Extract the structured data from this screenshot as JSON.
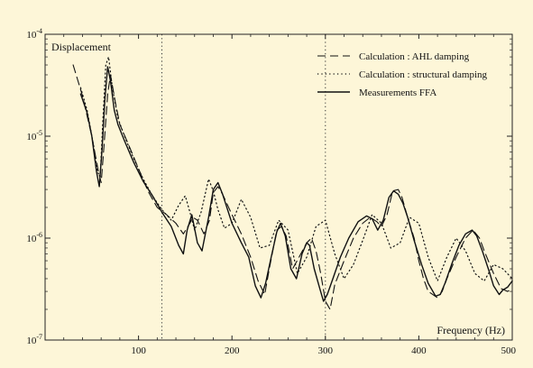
{
  "chart_data": {
    "type": "line",
    "title": "",
    "ylabel": "Displacement",
    "xlabel": "Frequency (Hz)",
    "xlim": [
      0,
      500
    ],
    "ylim": [
      1e-07,
      0.0001
    ],
    "yscale": "log",
    "grid": false,
    "legend_placement": "top-right",
    "x_ticks": [
      {
        "value": 100,
        "label": "100"
      },
      {
        "value": 200,
        "label": "200"
      },
      {
        "value": 300,
        "label": "300"
      },
      {
        "value": 400,
        "label": "400"
      },
      {
        "value": 500,
        "label": "500"
      }
    ],
    "y_ticks": [
      {
        "value": 1e-07,
        "base": "10",
        "exp": "-7"
      },
      {
        "value": 1e-06,
        "base": "10",
        "exp": "-6"
      },
      {
        "value": 1e-05,
        "base": "10",
        "exp": "-5"
      },
      {
        "value": 0.0001,
        "base": "10",
        "exp": "-4"
      }
    ],
    "reference_lines_x": [
      125,
      300
    ],
    "series": [
      {
        "name": "Calculation : AHL damping",
        "style": "dashed",
        "x": [
          30,
          40,
          50,
          57,
          60,
          63,
          67,
          70,
          75,
          80,
          90,
          100,
          110,
          120,
          130,
          140,
          148,
          155,
          158,
          163,
          170,
          176,
          180,
          185,
          190,
          200,
          210,
          220,
          228,
          235,
          240,
          248,
          253,
          258,
          265,
          273,
          280,
          285,
          290,
          295,
          300,
          305,
          310,
          320,
          330,
          340,
          348,
          355,
          360,
          366,
          372,
          378,
          382,
          388,
          395,
          400,
          405,
          410,
          420,
          425,
          430,
          440,
          450,
          458,
          465,
          470,
          480,
          488,
          495,
          500
        ],
        "y": [
          5e-05,
          2.5e-05,
          1e-05,
          4.5e-06,
          3.5e-06,
          8e-06,
          2.6e-05,
          4e-05,
          2.2e-05,
          1.3e-05,
          8e-06,
          4.8e-06,
          2.9e-06,
          2e-06,
          1.7e-06,
          1.4e-06,
          1.1e-06,
          1.4e-06,
          1.6e-06,
          1.5e-06,
          1.1e-06,
          1.5e-06,
          2.8e-06,
          3.2e-06,
          2.7e-06,
          1.7e-06,
          1.1e-06,
          6.5e-07,
          3.8e-07,
          2.8e-07,
          5e-07,
          1.2e-06,
          1.3e-06,
          1.05e-06,
          5e-07,
          6.8e-07,
          9e-07,
          1e-06,
          7.5e-07,
          4.5e-07,
          2.4e-07,
          2e-07,
          3.5e-07,
          6e-07,
          1e-06,
          1.4e-06,
          1.6e-06,
          1.45e-06,
          1.3e-06,
          1.7e-06,
          2.9e-06,
          3e-06,
          2.5e-06,
          1.6e-06,
          1e-06,
          6e-07,
          4e-07,
          3e-07,
          2.6e-07,
          3e-07,
          4e-07,
          6.5e-07,
          1e-06,
          1.2e-06,
          1e-06,
          7.5e-07,
          4.5e-07,
          3.2e-07,
          3e-07,
          3.2e-07
        ]
      },
      {
        "name": "Calculation : structural damping",
        "style": "dotted",
        "x": [
          38,
          45,
          52,
          56,
          59,
          62,
          65,
          68,
          72,
          78,
          85,
          95,
          105,
          115,
          125,
          135,
          143,
          150,
          155,
          160,
          167,
          175,
          180,
          185,
          192,
          200,
          210,
          220,
          230,
          240,
          250,
          260,
          270,
          280,
          290,
          300,
          310,
          320,
          330,
          340,
          350,
          360,
          370,
          380,
          390,
          400,
          410,
          420,
          430,
          440,
          450,
          460,
          470,
          480,
          490,
          500
        ],
        "y": [
          3e-05,
          1.8e-05,
          8e-06,
          4.5e-06,
          4e-06,
          1.5e-05,
          5e-05,
          6e-05,
          3e-05,
          1.5e-05,
          1e-05,
          6e-06,
          3.8e-06,
          2.6e-06,
          1.9e-06,
          1.5e-06,
          2.1e-06,
          2.6e-06,
          1.8e-06,
          1.2e-06,
          1.8e-06,
          3.8e-06,
          2.9e-06,
          1.9e-06,
          1.25e-06,
          1.4e-06,
          2.4e-06,
          1.6e-06,
          8e-07,
          8.5e-07,
          1.5e-06,
          1.2e-06,
          4.5e-07,
          6.5e-07,
          1.3e-06,
          1.5e-06,
          7e-07,
          4e-07,
          5.5e-07,
          9.5e-07,
          1.7e-06,
          1.4e-06,
          8e-07,
          9e-07,
          1.6e-06,
          1.4e-06,
          6.5e-07,
          3.8e-07,
          6.5e-07,
          1e-06,
          7.5e-07,
          4.5e-07,
          3.8e-07,
          5.5e-07,
          5e-07,
          4e-07
        ]
      },
      {
        "name": "Measurements FFA",
        "style": "solid",
        "x": [
          38,
          45,
          50,
          55,
          58,
          61,
          64,
          67,
          70,
          74,
          78,
          85,
          95,
          105,
          115,
          125,
          135,
          143,
          148,
          152,
          157,
          163,
          168,
          175,
          180,
          185,
          190,
          200,
          210,
          218,
          225,
          231,
          236,
          242,
          248,
          252,
          257,
          263,
          269,
          275,
          280,
          283,
          288,
          294,
          298,
          302,
          308,
          316,
          325,
          335,
          344,
          350,
          356,
          362,
          368,
          373,
          378,
          383,
          388,
          395,
          403,
          410,
          418,
          423,
          428,
          435,
          443,
          450,
          457,
          462,
          468,
          475,
          480,
          486,
          490,
          495,
          500
        ],
        "y": [
          2.6e-05,
          1.7e-05,
          1e-05,
          4.5e-06,
          3.2e-06,
          7.5e-06,
          2.3e-05,
          4.8e-05,
          3.5e-05,
          1.8e-05,
          1.3e-05,
          9e-06,
          5.5e-06,
          3.6e-06,
          2.6e-06,
          1.8e-06,
          1.3e-06,
          8.5e-07,
          7e-07,
          1.2e-06,
          1.7e-06,
          9e-07,
          7.5e-07,
          1.6e-06,
          3e-06,
          3.5e-06,
          2.7e-06,
          1.4e-06,
          9e-07,
          6.5e-07,
          3.4e-07,
          2.6e-07,
          3.6e-07,
          6.5e-07,
          1.15e-06,
          1.4e-06,
          1.05e-06,
          5e-07,
          4e-07,
          7e-07,
          9e-07,
          8.5e-07,
          5e-07,
          3.2e-07,
          2.4e-07,
          2.8e-07,
          4e-07,
          6.5e-07,
          1e-06,
          1.45e-06,
          1.65e-06,
          1.55e-06,
          1.2e-06,
          1.5e-06,
          2.5e-06,
          2.9e-06,
          2.7e-06,
          2.2e-06,
          1.6e-06,
          9.5e-07,
          5.5e-07,
          3.6e-07,
          2.7e-07,
          2.8e-07,
          3.6e-07,
          5.5e-07,
          8.5e-07,
          1.1e-06,
          1.2e-06,
          1.05e-06,
          7.5e-07,
          4.8e-07,
          3.4e-07,
          2.8e-07,
          3.1e-07,
          3.3e-07,
          3.8e-07
        ]
      }
    ]
  }
}
